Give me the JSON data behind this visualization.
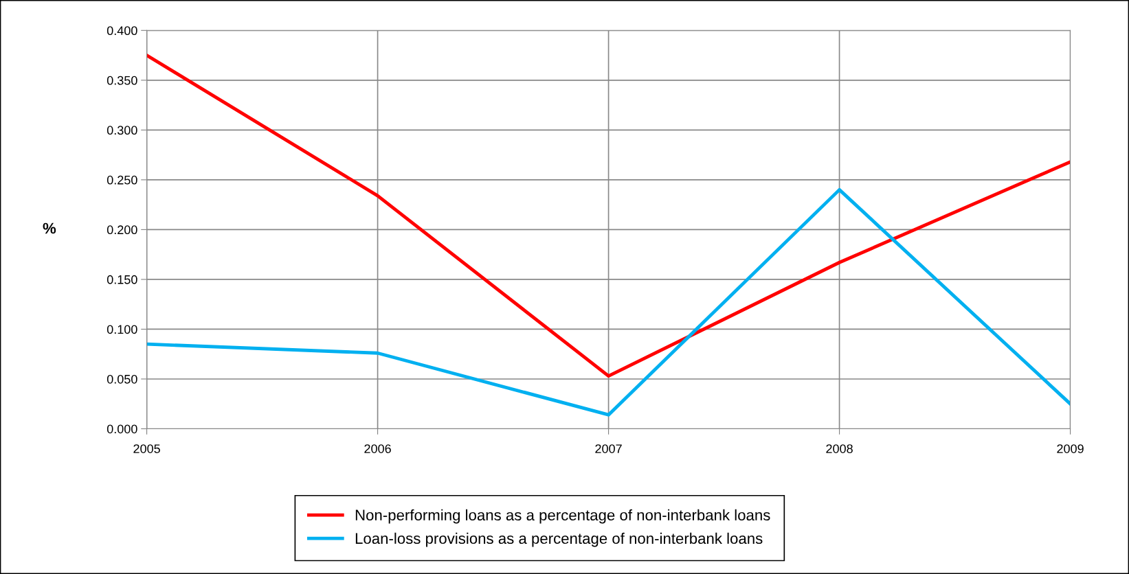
{
  "chart_data": {
    "type": "line",
    "ylabel": "%",
    "x": [
      2005,
      2006,
      2007,
      2008,
      2009
    ],
    "xlim": [
      2005,
      2009
    ],
    "xticks": [
      2005,
      2006,
      2007,
      2008,
      2009
    ],
    "ylim": [
      0,
      0.4
    ],
    "yticks": [
      {
        "value": 0,
        "label": "0.000"
      },
      {
        "value": 0.05,
        "label": "0.050"
      },
      {
        "value": 0.1,
        "label": "0.100"
      },
      {
        "value": 0.15,
        "label": "0.150"
      },
      {
        "value": 0.2,
        "label": "0.200"
      },
      {
        "value": 0.25,
        "label": "0.250"
      },
      {
        "value": 0.3,
        "label": "0.300"
      },
      {
        "value": 0.35,
        "label": "0.350"
      },
      {
        "value": 0.4,
        "label": "0.400"
      }
    ],
    "series": [
      {
        "name": "Non-performing loans as a percentage of non-interbank loans",
        "color": "#ff0000",
        "values": [
          0.375,
          0.234,
          0.053,
          0.167,
          0.268
        ]
      },
      {
        "name": "Loan-loss provisions as a percentage of non-interbank loans",
        "color": "#00b0f0",
        "values": [
          0.085,
          0.076,
          0.014,
          0.24,
          0.025
        ]
      }
    ],
    "grid": true,
    "legend": "bottom",
    "marker": "none",
    "line_style": "solid"
  }
}
